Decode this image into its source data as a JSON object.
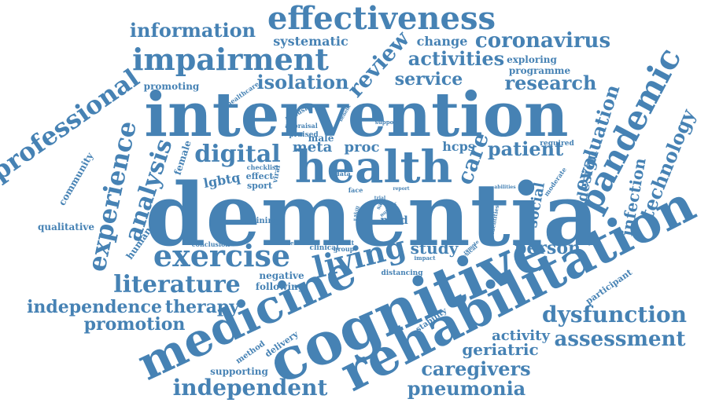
{
  "color": "#4682b4",
  "words": {
    "dementia": "dementia",
    "intervention": "intervention",
    "cognitive": "cognitive",
    "rehabilitation": "rehabilitation",
    "medicine": "medicine",
    "health": "health",
    "effectiveness": "effectiveness",
    "impairment": "impairment",
    "pandemic": "pandemic",
    "exercise": "exercise",
    "living": "living",
    "literature": "literature",
    "professional": "professional",
    "experience": "experience",
    "analysis": "analysis",
    "digital": "digital",
    "independent": "independent",
    "independence": "independence",
    "therapy": "therapy",
    "promotion": "promotion",
    "dysfunction": "dysfunction",
    "assessment": "assessment",
    "caregivers": "caregivers",
    "pneumonia": "pneumonia",
    "geriatric": "geriatric",
    "activity": "activity",
    "person": "person",
    "study": "study",
    "technology": "technology",
    "evaluation": "evaluation",
    "infection": "infection",
    "design": "design",
    "social": "social",
    "care": "care",
    "patient": "patient",
    "hcps": "hcps",
    "research": "research",
    "service": "service",
    "isolation": "isolation",
    "review": "review",
    "activities": "activities",
    "information": "information",
    "coronavirus": "coronavirus",
    "systematic": "systematic",
    "change": "change",
    "exploring": "exploring",
    "programme": "programme",
    "promoting": "promoting",
    "healthcare": "healthcare",
    "meta": "meta",
    "proc": "proc",
    "lgbtq": "lgbtq",
    "female": "female",
    "human": "human",
    "community": "community",
    "qualitative": "qualitative",
    "training": "training",
    "mild": "mild",
    "negative": "negative",
    "following": "following",
    "participant": "participant",
    "stability": "stability",
    "delivery": "delivery",
    "method": "method",
    "supporting": "supporting",
    "distancing": "distancing",
    "impact": "impact",
    "conclusion": "conclusion",
    "clinical": "clinical",
    "result": "result",
    "group": "group",
    "effect": "effect",
    "sport": "sport",
    "checklist": "checklist",
    "data": "data",
    "face": "face",
    "male": "male",
    "viral": "viral",
    "praised": "praised",
    "appraisal": "appraisal",
    "inclusive": "inclusive",
    "benefit": "benefit",
    "support": "support",
    "required": "required",
    "moderate": "moderate",
    "abilities": "abilities",
    "identities": "identities",
    "report": "report",
    "remote": "remote",
    "physical": "physical",
    "number": "number",
    "trial": "trial",
    "more": "more",
    "sar": "sar",
    "enable": "enable",
    "skill": "skill",
    "need": "need"
  }
}
